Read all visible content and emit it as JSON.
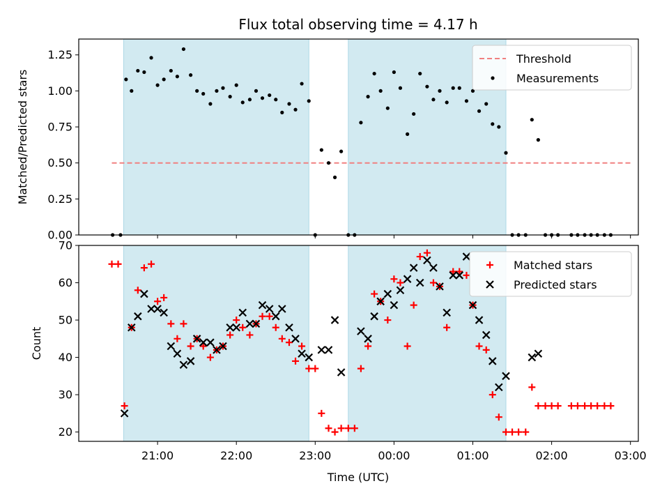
{
  "chart_data": {
    "type": "scatter",
    "title": "Flux total observing time = 4.17 h",
    "xlabel": "Time (UTC)",
    "x_ticks": [
      "21:00",
      "22:00",
      "23:00",
      "00:00",
      "01:00",
      "02:00",
      "03:00"
    ],
    "x_tick_hours": [
      21,
      22,
      23,
      24,
      25,
      26,
      27
    ],
    "xlim_hours": [
      20.0,
      27.1
    ],
    "shaded_intervals_hours": [
      [
        20.57,
        22.92
      ],
      [
        23.42,
        25.42
      ]
    ],
    "shade_color": "#add8e6",
    "panels": [
      {
        "ylabel": "Matched/Predicted stars",
        "ylim": [
          0,
          1.36
        ],
        "y_ticks": [
          "0.00",
          "0.25",
          "0.50",
          "0.75",
          "1.00",
          "1.25"
        ],
        "y_tick_values": [
          0,
          0.25,
          0.5,
          0.75,
          1.0,
          1.25
        ],
        "threshold": {
          "name": "Threshold",
          "value": 0.5,
          "x_range_hours": [
            20.42,
            27.0
          ],
          "color": "#f08080"
        },
        "series": [
          {
            "name": "Measurements",
            "marker": "dot",
            "color": "#000000",
            "points": [
              [
                20.43,
                0.0
              ],
              [
                20.53,
                0.0
              ],
              [
                20.6,
                1.08
              ],
              [
                20.67,
                1.0
              ],
              [
                20.75,
                1.14
              ],
              [
                20.83,
                1.13
              ],
              [
                20.92,
                1.23
              ],
              [
                21.0,
                1.04
              ],
              [
                21.08,
                1.08
              ],
              [
                21.17,
                1.14
              ],
              [
                21.25,
                1.1
              ],
              [
                21.33,
                1.29
              ],
              [
                21.42,
                1.11
              ],
              [
                21.5,
                1.0
              ],
              [
                21.58,
                0.98
              ],
              [
                21.67,
                0.91
              ],
              [
                21.75,
                1.0
              ],
              [
                21.83,
                1.02
              ],
              [
                21.92,
                0.96
              ],
              [
                22.0,
                1.04
              ],
              [
                22.08,
                0.92
              ],
              [
                22.17,
                0.94
              ],
              [
                22.25,
                1.0
              ],
              [
                22.33,
                0.95
              ],
              [
                22.42,
                0.97
              ],
              [
                22.5,
                0.94
              ],
              [
                22.58,
                0.85
              ],
              [
                22.67,
                0.91
              ],
              [
                22.75,
                0.87
              ],
              [
                22.83,
                1.05
              ],
              [
                22.92,
                0.93
              ],
              [
                23.0,
                0.0
              ],
              [
                23.08,
                0.59
              ],
              [
                23.17,
                0.5
              ],
              [
                23.25,
                0.4
              ],
              [
                23.33,
                0.58
              ],
              [
                23.42,
                0.0
              ],
              [
                23.5,
                0.0
              ],
              [
                23.58,
                0.78
              ],
              [
                23.67,
                0.96
              ],
              [
                23.75,
                1.12
              ],
              [
                23.83,
                1.0
              ],
              [
                23.92,
                0.88
              ],
              [
                24.0,
                1.13
              ],
              [
                24.08,
                1.02
              ],
              [
                24.17,
                0.7
              ],
              [
                24.25,
                0.84
              ],
              [
                24.33,
                1.12
              ],
              [
                24.42,
                1.03
              ],
              [
                24.5,
                0.94
              ],
              [
                24.58,
                1.0
              ],
              [
                24.67,
                0.92
              ],
              [
                24.75,
                1.02
              ],
              [
                24.83,
                1.02
              ],
              [
                24.92,
                0.93
              ],
              [
                25.0,
                1.0
              ],
              [
                25.08,
                0.86
              ],
              [
                25.17,
                0.91
              ],
              [
                25.25,
                0.77
              ],
              [
                25.33,
                0.75
              ],
              [
                25.42,
                0.57
              ],
              [
                25.5,
                0.0
              ],
              [
                25.58,
                0.0
              ],
              [
                25.67,
                0.0
              ],
              [
                25.75,
                0.8
              ],
              [
                25.83,
                0.66
              ],
              [
                25.92,
                0.0
              ],
              [
                26.0,
                0.0
              ],
              [
                26.08,
                0.0
              ],
              [
                26.25,
                0.0
              ],
              [
                26.33,
                0.0
              ],
              [
                26.42,
                0.0
              ],
              [
                26.5,
                0.0
              ],
              [
                26.58,
                0.0
              ],
              [
                26.67,
                0.0
              ],
              [
                26.75,
                0.0
              ]
            ]
          }
        ],
        "legend": {
          "placement": "top-right",
          "entries": [
            "Threshold",
            "Measurements"
          ]
        }
      },
      {
        "ylabel": "Count",
        "ylim": [
          17.5,
          70
        ],
        "y_ticks": [
          "20",
          "30",
          "40",
          "50",
          "60",
          "70"
        ],
        "y_tick_values": [
          20,
          30,
          40,
          50,
          60,
          70
        ],
        "series": [
          {
            "name": "Matched stars",
            "marker": "plus",
            "color": "#ff0000",
            "points": [
              [
                20.42,
                65
              ],
              [
                20.5,
                65
              ],
              [
                20.58,
                27
              ],
              [
                20.67,
                48
              ],
              [
                20.75,
                58
              ],
              [
                20.83,
                64
              ],
              [
                20.92,
                65
              ],
              [
                21.0,
                55
              ],
              [
                21.08,
                56
              ],
              [
                21.17,
                49
              ],
              [
                21.25,
                45
              ],
              [
                21.33,
                49
              ],
              [
                21.42,
                43
              ],
              [
                21.5,
                45
              ],
              [
                21.58,
                43
              ],
              [
                21.67,
                40
              ],
              [
                21.75,
                42
              ],
              [
                21.83,
                43
              ],
              [
                21.92,
                46
              ],
              [
                22.0,
                50
              ],
              [
                22.08,
                48
              ],
              [
                22.17,
                46
              ],
              [
                22.25,
                49
              ],
              [
                22.33,
                51
              ],
              [
                22.42,
                51
              ],
              [
                22.5,
                48
              ],
              [
                22.58,
                45
              ],
              [
                22.67,
                44
              ],
              [
                22.75,
                39
              ],
              [
                22.83,
                43
              ],
              [
                22.92,
                37
              ],
              [
                23.0,
                37
              ],
              [
                23.08,
                25
              ],
              [
                23.17,
                21
              ],
              [
                23.25,
                20
              ],
              [
                23.33,
                21
              ],
              [
                23.42,
                21
              ],
              [
                23.5,
                21
              ],
              [
                23.58,
                37
              ],
              [
                23.67,
                43
              ],
              [
                23.75,
                57
              ],
              [
                23.83,
                55
              ],
              [
                23.92,
                50
              ],
              [
                24.0,
                61
              ],
              [
                24.08,
                60
              ],
              [
                24.17,
                43
              ],
              [
                24.25,
                54
              ],
              [
                24.33,
                67
              ],
              [
                24.42,
                68
              ],
              [
                24.5,
                60
              ],
              [
                24.58,
                59
              ],
              [
                24.67,
                48
              ],
              [
                24.75,
                63
              ],
              [
                24.83,
                63
              ],
              [
                24.92,
                62
              ],
              [
                25.0,
                54
              ],
              [
                25.08,
                43
              ],
              [
                25.17,
                42
              ],
              [
                25.25,
                30
              ],
              [
                25.33,
                24
              ],
              [
                25.42,
                20
              ],
              [
                25.5,
                20
              ],
              [
                25.58,
                20
              ],
              [
                25.67,
                20
              ],
              [
                25.75,
                32
              ],
              [
                25.83,
                27
              ],
              [
                25.92,
                27
              ],
              [
                26.0,
                27
              ],
              [
                26.08,
                27
              ],
              [
                26.25,
                27
              ],
              [
                26.33,
                27
              ],
              [
                26.42,
                27
              ],
              [
                26.5,
                27
              ],
              [
                26.58,
                27
              ],
              [
                26.67,
                27
              ],
              [
                26.75,
                27
              ]
            ]
          },
          {
            "name": "Predicted stars",
            "marker": "cross",
            "color": "#000000",
            "points": [
              [
                20.58,
                25
              ],
              [
                20.67,
                48
              ],
              [
                20.75,
                51
              ],
              [
                20.83,
                57
              ],
              [
                20.92,
                53
              ],
              [
                21.0,
                53
              ],
              [
                21.08,
                52
              ],
              [
                21.17,
                43
              ],
              [
                21.25,
                41
              ],
              [
                21.33,
                38
              ],
              [
                21.42,
                39
              ],
              [
                21.5,
                45
              ],
              [
                21.58,
                44
              ],
              [
                21.67,
                44
              ],
              [
                21.75,
                42
              ],
              [
                21.83,
                43
              ],
              [
                21.92,
                48
              ],
              [
                22.0,
                48
              ],
              [
                22.08,
                52
              ],
              [
                22.17,
                49
              ],
              [
                22.25,
                49
              ],
              [
                22.33,
                54
              ],
              [
                22.42,
                53
              ],
              [
                22.5,
                51
              ],
              [
                22.58,
                53
              ],
              [
                22.67,
                48
              ],
              [
                22.75,
                45
              ],
              [
                22.83,
                41
              ],
              [
                22.92,
                40
              ],
              [
                23.08,
                42
              ],
              [
                23.17,
                42
              ],
              [
                23.25,
                50
              ],
              [
                23.33,
                36
              ],
              [
                23.58,
                47
              ],
              [
                23.67,
                45
              ],
              [
                23.75,
                51
              ],
              [
                23.83,
                55
              ],
              [
                23.92,
                57
              ],
              [
                24.0,
                54
              ],
              [
                24.08,
                58
              ],
              [
                24.17,
                61
              ],
              [
                24.25,
                64
              ],
              [
                24.33,
                60
              ],
              [
                24.42,
                66
              ],
              [
                24.5,
                64
              ],
              [
                24.58,
                59
              ],
              [
                24.67,
                52
              ],
              [
                24.75,
                62
              ],
              [
                24.83,
                62
              ],
              [
                24.92,
                67
              ],
              [
                25.0,
                54
              ],
              [
                25.08,
                50
              ],
              [
                25.17,
                46
              ],
              [
                25.25,
                39
              ],
              [
                25.33,
                32
              ],
              [
                25.42,
                35
              ],
              [
                25.75,
                40
              ],
              [
                25.83,
                41
              ]
            ]
          }
        ],
        "legend": {
          "placement": "top-right",
          "entries": [
            "Matched stars",
            "Predicted stars"
          ]
        }
      }
    ]
  }
}
